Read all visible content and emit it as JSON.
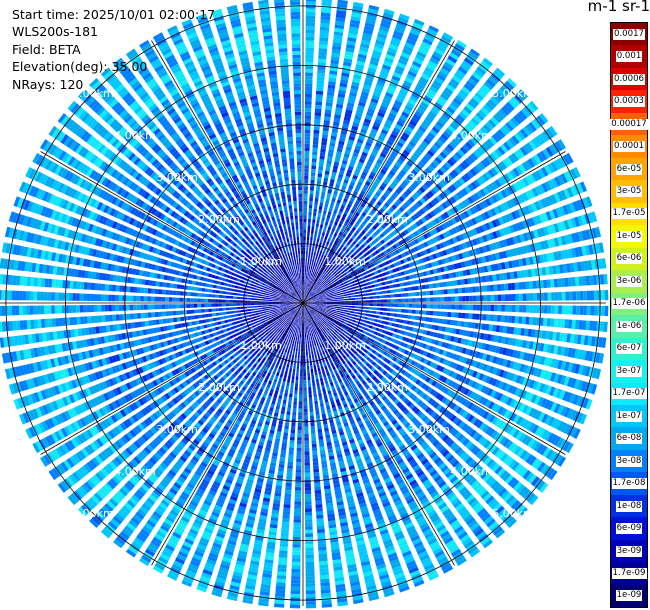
{
  "info": {
    "start_time": "Start time: 2025/10/01 02:00:17",
    "instrument": "WLS200s-181",
    "field": "Field: BETA",
    "elevation": "Elevation(deg): 35.00",
    "nrays": "NRays: 120"
  },
  "colorbar": {
    "units_label": "m-1 sr-1",
    "ticks": [
      "0.0017",
      "0.001",
      "0.0006",
      "0.0003",
      "0.00017",
      "0.0001",
      "6e-05",
      "3e-05",
      "1.7e-05",
      "1e-05",
      "6e-06",
      "3e-06",
      "1.7e-06",
      "1e-06",
      "6e-07",
      "3e-07",
      "1.7e-07",
      "1e-07",
      "6e-08",
      "3e-08",
      "1.7e-08",
      "1e-08",
      "6e-09",
      "3e-09",
      "1.7e-09",
      "1e-09"
    ],
    "colors": [
      "#8b0000",
      "#b00000",
      "#dd0000",
      "#ff2000",
      "#ff6000",
      "#ff8c00",
      "#ffa500",
      "#ffbf00",
      "#ffde00",
      "#f2f700",
      "#d0f020",
      "#a8ee4c",
      "#80f080",
      "#58f0a8",
      "#30f0d0",
      "#18f0f0",
      "#10e8f8",
      "#00c8ff",
      "#00a8f0",
      "#0080ff",
      "#0058f0",
      "#0030e0",
      "#0010d8",
      "#0000b8",
      "#000098",
      "#000070"
    ]
  },
  "chart_data": {
    "type": "heatmap",
    "projection": "polar PPI (plan position indicator)",
    "field": "BETA",
    "elevation_deg": 35.0,
    "n_rays": 120,
    "range_rings": [
      "1.00km",
      "2.00km",
      "3.00km",
      "4.00km",
      "5.00km"
    ],
    "range_rings_km": [
      1,
      2,
      3,
      4,
      5
    ],
    "max_range_km": 5.1,
    "color_scale": "log",
    "value_range": [
      1e-09,
      0.0017
    ],
    "typical_value_by_range_km": [
      {
        "range_km": 0.5,
        "value": 3e-09
      },
      {
        "range_km": 1.5,
        "value": 1.7e-08
      },
      {
        "range_km": 2.5,
        "value": 3e-08
      },
      {
        "range_km": 3.5,
        "value": 3e-08
      },
      {
        "range_km": 4.2,
        "value": 1e-07
      },
      {
        "range_km": 4.8,
        "value": 6e-08
      }
    ],
    "grid": true
  }
}
